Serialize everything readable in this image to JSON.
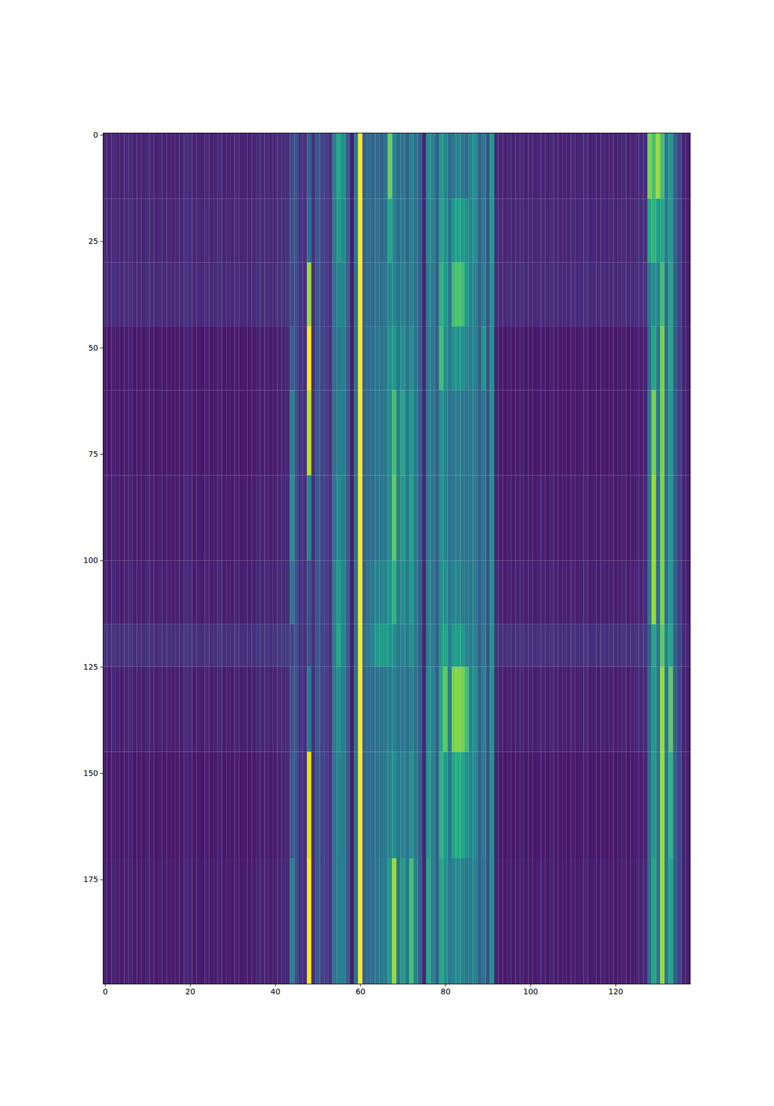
{
  "chart_data": {
    "type": "heatmap",
    "color": "viridis",
    "xlim": [
      -0.5,
      137.5
    ],
    "ylim": [
      199.5,
      -0.5
    ],
    "xticks": [
      0,
      20,
      40,
      60,
      80,
      100,
      120
    ],
    "yticks": [
      0,
      25,
      50,
      75,
      100,
      125,
      150,
      175
    ],
    "zlim": [
      0,
      100
    ],
    "x": [
      0,
      1,
      2,
      3,
      4,
      5,
      6,
      7,
      8,
      9,
      10,
      11,
      12,
      13,
      14,
      15,
      16,
      17,
      18,
      19,
      20,
      21,
      22,
      23,
      24,
      25,
      26,
      27,
      28,
      29,
      30,
      31,
      32,
      33,
      34,
      35,
      36,
      37,
      38,
      39,
      40,
      41,
      42,
      43,
      44,
      45,
      46,
      47,
      48,
      49,
      50,
      51,
      52,
      53,
      54,
      55,
      56,
      57,
      58,
      59,
      60,
      61,
      62,
      63,
      64,
      65,
      66,
      67,
      68,
      69,
      70,
      71,
      72,
      73,
      74,
      75,
      76,
      77,
      78,
      79,
      80,
      81,
      82,
      83,
      84,
      85,
      86,
      87,
      88,
      89,
      90,
      91,
      92,
      93,
      94,
      95,
      96,
      97,
      98,
      99,
      100,
      101,
      102,
      103,
      104,
      105,
      106,
      107,
      108,
      109,
      110,
      111,
      112,
      113,
      114,
      115,
      116,
      117,
      118,
      119,
      120,
      121,
      122,
      123,
      124,
      125,
      126,
      127,
      128,
      129,
      130,
      131,
      132,
      133,
      134,
      135,
      136,
      137
    ],
    "row_edges": [
      -0.5,
      15,
      30,
      45,
      60,
      80,
      100,
      115,
      125,
      145,
      170,
      199.5
    ],
    "z": [
      [
        11,
        9,
        12,
        10,
        9,
        11,
        12,
        9,
        10,
        9,
        12,
        10,
        9,
        11,
        9,
        10,
        9,
        10,
        9,
        13,
        12,
        9,
        10,
        9,
        11,
        9,
        10,
        12,
        9,
        10,
        9,
        11,
        9,
        10,
        9,
        10,
        13,
        11,
        12,
        10,
        11,
        12,
        13,
        14,
        22,
        25,
        15,
        14,
        30,
        14,
        28,
        20,
        18,
        15,
        45,
        60,
        50,
        30,
        8,
        40,
        100,
        30,
        35,
        30,
        35,
        30,
        38,
        78,
        45,
        35,
        40,
        30,
        45,
        38,
        30,
        10,
        50,
        45,
        30,
        55,
        45,
        35,
        40,
        45,
        40,
        35,
        45,
        50,
        30,
        40,
        25,
        55,
        12,
        10,
        9,
        11,
        9,
        10,
        12,
        9,
        10,
        9,
        11,
        10,
        9,
        12,
        10,
        9,
        10,
        9,
        11,
        9,
        10,
        12,
        9,
        10,
        9,
        11,
        9,
        10,
        9,
        10,
        11,
        9,
        10,
        12,
        11,
        13,
        80,
        70,
        85,
        70,
        40,
        55,
        30,
        20,
        10,
        8
      ],
      [
        12,
        10,
        13,
        11,
        10,
        12,
        13,
        10,
        11,
        10,
        13,
        11,
        10,
        12,
        10,
        11,
        10,
        11,
        10,
        14,
        13,
        10,
        11,
        10,
        12,
        10,
        11,
        13,
        10,
        11,
        10,
        12,
        10,
        11,
        10,
        11,
        14,
        12,
        13,
        11,
        12,
        13,
        14,
        15,
        25,
        25,
        15,
        14,
        35,
        14,
        28,
        20,
        18,
        15,
        42,
        55,
        48,
        32,
        8,
        40,
        100,
        32,
        35,
        32,
        38,
        32,
        38,
        60,
        45,
        35,
        42,
        32,
        45,
        38,
        30,
        10,
        48,
        45,
        30,
        58,
        50,
        38,
        55,
        58,
        55,
        50,
        45,
        50,
        30,
        42,
        25,
        55,
        13,
        11,
        10,
        12,
        10,
        11,
        13,
        10,
        11,
        10,
        12,
        11,
        10,
        13,
        11,
        10,
        11,
        10,
        12,
        10,
        11,
        13,
        10,
        11,
        10,
        12,
        10,
        11,
        10,
        11,
        12,
        10,
        11,
        13,
        12,
        14,
        60,
        65,
        55,
        60,
        40,
        55,
        30,
        20,
        10,
        8
      ],
      [
        13,
        11,
        14,
        12,
        11,
        13,
        14,
        11,
        12,
        11,
        14,
        12,
        11,
        13,
        11,
        12,
        11,
        12,
        11,
        15,
        14,
        11,
        12,
        11,
        13,
        11,
        12,
        14,
        11,
        12,
        11,
        13,
        11,
        12,
        11,
        12,
        15,
        13,
        14,
        12,
        13,
        14,
        15,
        16,
        22,
        24,
        15,
        14,
        85,
        14,
        28,
        20,
        18,
        15,
        40,
        45,
        45,
        32,
        8,
        38,
        100,
        32,
        35,
        32,
        38,
        35,
        40,
        45,
        48,
        38,
        45,
        35,
        45,
        38,
        30,
        10,
        45,
        42,
        30,
        65,
        55,
        40,
        70,
        72,
        70,
        55,
        45,
        45,
        30,
        45,
        25,
        52,
        14,
        12,
        11,
        13,
        11,
        12,
        14,
        11,
        12,
        11,
        13,
        12,
        11,
        14,
        12,
        11,
        12,
        11,
        13,
        11,
        12,
        14,
        11,
        12,
        11,
        13,
        11,
        12,
        11,
        12,
        13,
        11,
        12,
        14,
        13,
        15,
        40,
        50,
        45,
        70,
        35,
        60,
        30,
        20,
        10,
        8
      ],
      [
        8,
        6,
        9,
        7,
        6,
        8,
        9,
        6,
        7,
        6,
        9,
        7,
        6,
        8,
        6,
        7,
        6,
        7,
        6,
        10,
        9,
        6,
        7,
        6,
        8,
        6,
        7,
        9,
        6,
        7,
        6,
        8,
        6,
        7,
        6,
        7,
        10,
        8,
        9,
        7,
        8,
        9,
        10,
        11,
        30,
        24,
        15,
        14,
        100,
        14,
        28,
        20,
        18,
        15,
        38,
        40,
        42,
        30,
        8,
        38,
        100,
        32,
        35,
        35,
        40,
        38,
        40,
        50,
        55,
        40,
        50,
        38,
        50,
        38,
        30,
        10,
        42,
        40,
        30,
        70,
        50,
        40,
        50,
        52,
        50,
        45,
        42,
        45,
        30,
        55,
        25,
        50,
        9,
        7,
        6,
        8,
        6,
        7,
        9,
        6,
        7,
        6,
        8,
        7,
        6,
        9,
        7,
        6,
        7,
        6,
        8,
        6,
        7,
        9,
        6,
        7,
        6,
        8,
        6,
        7,
        6,
        7,
        8,
        6,
        7,
        9,
        8,
        10,
        35,
        60,
        40,
        80,
        35,
        60,
        28,
        18,
        10,
        8
      ],
      [
        8,
        6,
        9,
        7,
        6,
        8,
        9,
        6,
        7,
        6,
        9,
        7,
        6,
        8,
        6,
        7,
        6,
        7,
        6,
        10,
        9,
        6,
        7,
        6,
        8,
        6,
        7,
        9,
        6,
        7,
        6,
        8,
        6,
        7,
        6,
        7,
        10,
        8,
        9,
        7,
        8,
        9,
        10,
        11,
        45,
        25,
        15,
        14,
        90,
        14,
        28,
        20,
        18,
        15,
        38,
        42,
        42,
        30,
        8,
        38,
        100,
        32,
        35,
        35,
        40,
        38,
        40,
        48,
        70,
        42,
        60,
        40,
        55,
        40,
        30,
        10,
        42,
        40,
        30,
        50,
        45,
        38,
        40,
        42,
        40,
        38,
        40,
        42,
        30,
        40,
        25,
        50,
        9,
        7,
        6,
        8,
        6,
        7,
        9,
        6,
        7,
        6,
        8,
        7,
        6,
        9,
        7,
        6,
        7,
        6,
        8,
        6,
        7,
        9,
        6,
        7,
        6,
        8,
        6,
        7,
        6,
        7,
        8,
        6,
        7,
        9,
        8,
        10,
        40,
        80,
        40,
        80,
        35,
        55,
        28,
        18,
        10,
        8
      ],
      [
        9,
        7,
        10,
        8,
        7,
        9,
        10,
        7,
        8,
        7,
        10,
        8,
        7,
        9,
        7,
        8,
        7,
        8,
        7,
        11,
        10,
        7,
        8,
        7,
        9,
        7,
        8,
        10,
        7,
        8,
        7,
        9,
        7,
        8,
        7,
        8,
        11,
        9,
        10,
        8,
        9,
        10,
        11,
        12,
        50,
        25,
        15,
        14,
        45,
        14,
        28,
        20,
        18,
        15,
        40,
        48,
        42,
        30,
        8,
        38,
        100,
        32,
        35,
        35,
        40,
        40,
        40,
        48,
        75,
        42,
        55,
        40,
        58,
        40,
        30,
        10,
        42,
        40,
        30,
        50,
        45,
        38,
        40,
        42,
        40,
        38,
        40,
        42,
        30,
        40,
        25,
        50,
        10,
        8,
        7,
        9,
        7,
        8,
        10,
        7,
        8,
        7,
        9,
        8,
        7,
        10,
        8,
        7,
        8,
        7,
        9,
        7,
        8,
        10,
        7,
        8,
        7,
        9,
        7,
        8,
        7,
        8,
        9,
        7,
        8,
        10,
        9,
        11,
        40,
        85,
        35,
        80,
        35,
        55,
        28,
        18,
        10,
        8
      ],
      [
        10,
        8,
        11,
        9,
        8,
        10,
        11,
        8,
        9,
        8,
        11,
        9,
        8,
        10,
        8,
        9,
        8,
        9,
        8,
        12,
        11,
        8,
        9,
        8,
        10,
        8,
        9,
        11,
        8,
        9,
        8,
        10,
        8,
        9,
        8,
        9,
        12,
        10,
        11,
        9,
        10,
        11,
        12,
        13,
        40,
        25,
        15,
        14,
        25,
        14,
        28,
        20,
        18,
        15,
        45,
        55,
        45,
        30,
        8,
        38,
        100,
        32,
        38,
        40,
        45,
        45,
        45,
        50,
        65,
        42,
        50,
        40,
        55,
        40,
        30,
        10,
        45,
        40,
        30,
        50,
        50,
        40,
        45,
        45,
        42,
        40,
        40,
        42,
        30,
        40,
        25,
        50,
        11,
        9,
        8,
        10,
        8,
        9,
        11,
        8,
        9,
        8,
        10,
        9,
        8,
        11,
        9,
        8,
        9,
        8,
        10,
        8,
        9,
        11,
        8,
        9,
        8,
        10,
        8,
        9,
        8,
        9,
        10,
        8,
        9,
        11,
        10,
        12,
        40,
        85,
        35,
        80,
        35,
        55,
        28,
        18,
        10,
        8
      ],
      [
        15,
        13,
        16,
        14,
        13,
        15,
        16,
        13,
        14,
        13,
        16,
        14,
        13,
        15,
        13,
        14,
        13,
        14,
        13,
        17,
        16,
        13,
        14,
        13,
        15,
        13,
        14,
        16,
        13,
        14,
        13,
        15,
        13,
        14,
        13,
        14,
        17,
        15,
        16,
        14,
        15,
        16,
        17,
        18,
        20,
        25,
        15,
        14,
        25,
        14,
        28,
        20,
        18,
        15,
        45,
        60,
        45,
        30,
        8,
        38,
        100,
        35,
        40,
        45,
        55,
        55,
        55,
        50,
        50,
        40,
        45,
        40,
        50,
        40,
        30,
        10,
        45,
        42,
        30,
        55,
        60,
        42,
        55,
        55,
        55,
        45,
        42,
        45,
        30,
        42,
        25,
        52,
        16,
        14,
        13,
        15,
        13,
        14,
        16,
        13,
        14,
        13,
        15,
        14,
        13,
        16,
        14,
        13,
        14,
        13,
        15,
        13,
        14,
        16,
        13,
        14,
        13,
        15,
        13,
        14,
        13,
        14,
        15,
        13,
        14,
        16,
        15,
        17,
        30,
        60,
        40,
        75,
        45,
        60,
        30,
        20,
        12,
        10
      ],
      [
        10,
        8,
        11,
        9,
        8,
        10,
        11,
        8,
        9,
        8,
        11,
        9,
        8,
        10,
        8,
        9,
        8,
        9,
        8,
        12,
        11,
        8,
        9,
        8,
        10,
        8,
        9,
        11,
        8,
        9,
        8,
        10,
        8,
        9,
        8,
        9,
        12,
        10,
        11,
        9,
        10,
        11,
        12,
        13,
        25,
        25,
        15,
        14,
        40,
        14,
        28,
        20,
        18,
        15,
        42,
        50,
        42,
        30,
        8,
        38,
        100,
        32,
        35,
        35,
        38,
        38,
        40,
        40,
        45,
        38,
        40,
        35,
        45,
        38,
        30,
        10,
        50,
        45,
        30,
        60,
        75,
        42,
        80,
        82,
        80,
        70,
        45,
        50,
        30,
        45,
        25,
        52,
        11,
        9,
        8,
        10,
        8,
        9,
        11,
        8,
        9,
        8,
        10,
        9,
        8,
        11,
        9,
        8,
        9,
        8,
        10,
        8,
        9,
        11,
        8,
        9,
        8,
        10,
        8,
        9,
        8,
        9,
        10,
        8,
        9,
        11,
        10,
        12,
        35,
        55,
        40,
        85,
        40,
        75,
        30,
        20,
        10,
        8
      ],
      [
        8,
        6,
        9,
        7,
        6,
        8,
        9,
        6,
        7,
        6,
        9,
        7,
        6,
        8,
        6,
        7,
        6,
        7,
        6,
        10,
        9,
        6,
        7,
        6,
        8,
        6,
        7,
        9,
        6,
        7,
        6,
        8,
        6,
        7,
        6,
        7,
        10,
        8,
        9,
        7,
        8,
        9,
        10,
        11,
        28,
        25,
        15,
        14,
        95,
        14,
        28,
        20,
        18,
        15,
        40,
        45,
        42,
        30,
        8,
        38,
        100,
        32,
        35,
        35,
        38,
        38,
        40,
        45,
        50,
        40,
        45,
        38,
        50,
        40,
        30,
        10,
        55,
        45,
        30,
        65,
        55,
        40,
        60,
        62,
        60,
        50,
        45,
        48,
        30,
        42,
        25,
        50,
        9,
        7,
        6,
        8,
        6,
        7,
        9,
        6,
        7,
        6,
        8,
        7,
        6,
        9,
        7,
        6,
        7,
        6,
        8,
        6,
        7,
        9,
        6,
        7,
        6,
        8,
        6,
        7,
        6,
        7,
        8,
        6,
        7,
        9,
        8,
        10,
        35,
        55,
        40,
        85,
        40,
        65,
        30,
        20,
        10,
        8
      ],
      [
        9,
        7,
        10,
        8,
        7,
        9,
        10,
        7,
        8,
        7,
        10,
        8,
        7,
        9,
        7,
        8,
        7,
        8,
        7,
        11,
        10,
        7,
        8,
        7,
        9,
        7,
        8,
        10,
        7,
        8,
        7,
        9,
        7,
        8,
        7,
        8,
        11,
        9,
        10,
        8,
        9,
        10,
        11,
        12,
        45,
        25,
        15,
        14,
        100,
        14,
        28,
        20,
        18,
        15,
        40,
        42,
        42,
        30,
        8,
        38,
        100,
        32,
        35,
        35,
        40,
        40,
        42,
        55,
        85,
        40,
        55,
        40,
        70,
        45,
        30,
        10,
        60,
        45,
        30,
        60,
        50,
        40,
        45,
        48,
        45,
        40,
        42,
        45,
        30,
        40,
        25,
        50,
        10,
        8,
        7,
        9,
        7,
        8,
        10,
        7,
        8,
        7,
        9,
        8,
        7,
        10,
        8,
        7,
        8,
        7,
        9,
        7,
        8,
        10,
        7,
        8,
        7,
        9,
        7,
        8,
        7,
        8,
        9,
        7,
        8,
        10,
        9,
        11,
        35,
        60,
        40,
        85,
        40,
        60,
        30,
        20,
        10,
        8
      ]
    ]
  }
}
